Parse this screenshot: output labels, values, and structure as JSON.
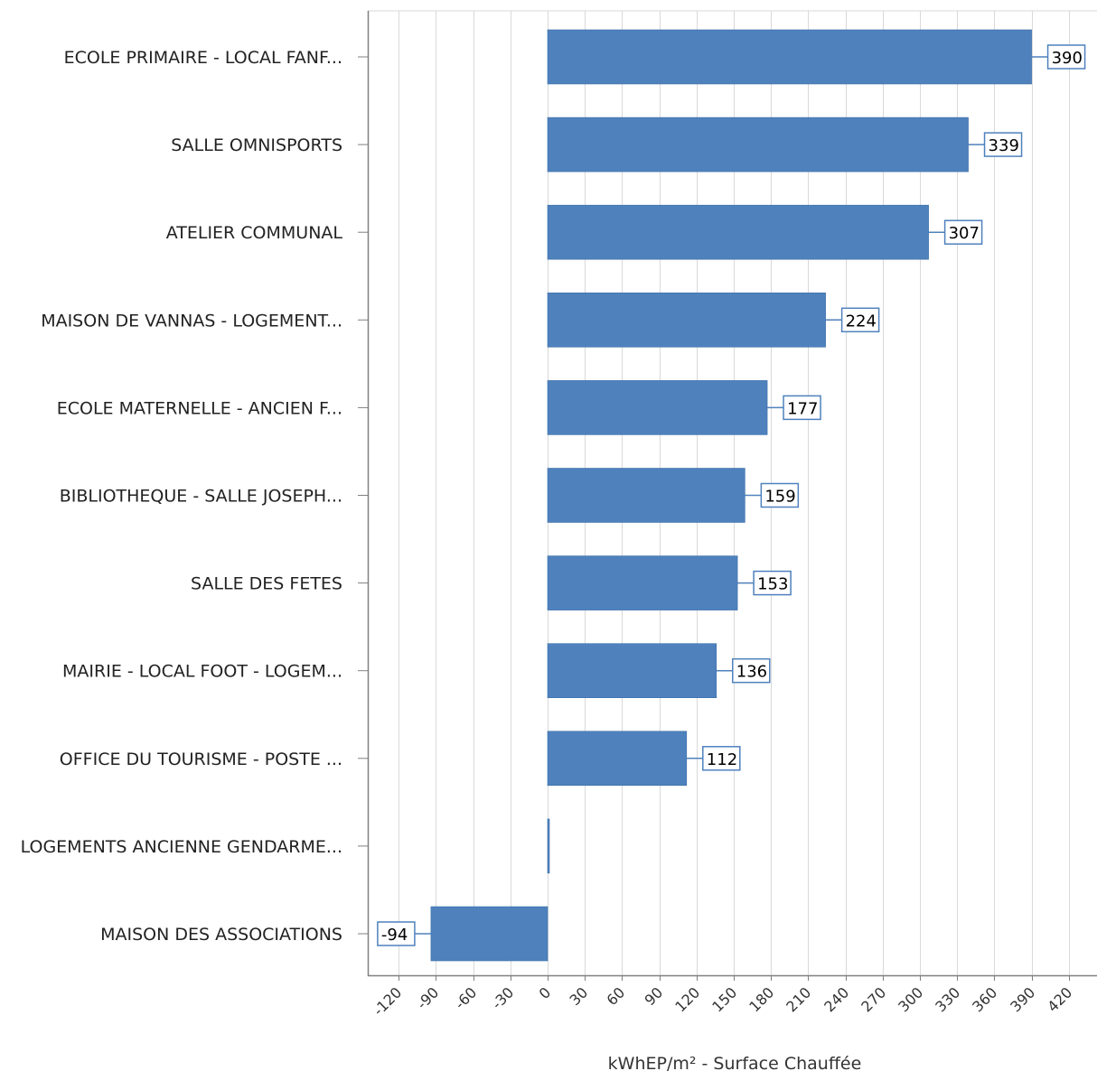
{
  "chart_data": {
    "type": "bar",
    "orientation": "horizontal",
    "categories": [
      "ECOLE PRIMAIRE - LOCAL FANF...",
      "SALLE OMNISPORTS",
      "ATELIER COMMUNAL",
      "MAISON DE VANNAS - LOGEMENT...",
      "ECOLE MATERNELLE - ANCIEN F...",
      "BIBLIOTHEQUE - SALLE JOSEPH...",
      "SALLE DES FETES",
      "MAIRIE - LOCAL FOOT - LOGEM...",
      "OFFICE DU TOURISME - POSTE ...",
      "LOGEMENTS ANCIENNE GENDARME...",
      "MAISON DES ASSOCIATIONS"
    ],
    "values": [
      390,
      339,
      307,
      224,
      177,
      159,
      153,
      136,
      112,
      0,
      -94
    ],
    "data_labels": [
      "390",
      "339",
      "307",
      "224",
      "177",
      "159",
      "153",
      "136",
      "112",
      "",
      "-94"
    ],
    "xlabel": "kWhEP/m² - Surface Chauffée",
    "ylabel": "",
    "title": "",
    "xlim": [
      -128,
      430
    ],
    "xticks": [
      -120,
      -90,
      -60,
      -30,
      0,
      30,
      60,
      90,
      120,
      150,
      180,
      210,
      240,
      270,
      300,
      330,
      360,
      390,
      420
    ],
    "grid": "vertical",
    "legend": "none",
    "bar_color": "#4f81bd",
    "grid_color": "#d9d9d9",
    "axis_color": "#808080"
  }
}
